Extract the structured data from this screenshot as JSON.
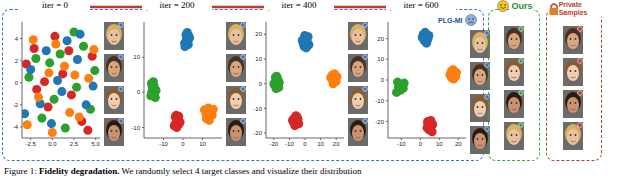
{
  "chart_data": [
    {
      "type": "scatter",
      "title": "iter = 0",
      "xlim": [
        -3.5,
        5.5
      ],
      "ylim": [
        -5,
        5.5
      ],
      "xticks": [
        -2.5,
        {
          "value": 0,
          "label": "0.0"
        },
        2.5,
        {
          "value": 5,
          "label": "5.0"
        }
      ],
      "yticks": [
        -4,
        -2,
        0,
        2,
        4
      ],
      "grid": false,
      "series": [
        {
          "color": "#d62728",
          "x": [
            -2.1,
            -0.5,
            1.2,
            3.4,
            4.6,
            -1.8,
            0.3,
            2.2,
            -3.0,
            1.9,
            4.1,
            -0.9
          ],
          "y": [
            3.1,
            -2.2,
            0.8,
            -3.5,
            2.4,
            -0.6,
            4.2,
            -1.1,
            1.7,
            2.9,
            -4.3,
            0.1
          ]
        },
        {
          "color": "#2ca02c",
          "x": [
            -1.2,
            0.9,
            2.8,
            4.9,
            -2.7,
            1.5,
            3.6,
            -0.3,
            0.2,
            2.5,
            -1.9,
            4.4
          ],
          "y": [
            -3.2,
            2.6,
            -0.4,
            1.1,
            0.5,
            -4.1,
            3.3,
            1.8,
            -1.5,
            4.6,
            2.2,
            -2.4
          ]
        },
        {
          "color": "#1f77b4",
          "x": [
            -2.5,
            -0.1,
            1.7,
            3.9,
            0.6,
            2.9,
            -1.4,
            4.7,
            -3.2,
            1.1,
            3.2,
            -0.7
          ],
          "y": [
            1.2,
            -3.7,
            3.8,
            -2.0,
            0.2,
            2.1,
            -1.9,
            -0.3,
            -2.8,
            -0.8,
            4.4,
            2.9
          ]
        },
        {
          "color": "#ff7f0e",
          "x": [
            -1.6,
            0.4,
            2.0,
            4.2,
            -2.9,
            3.1,
            -0.4,
            1.4,
            4.8,
            -2.2,
            2.6,
            0.0
          ],
          "y": [
            -1.3,
            3.5,
            -2.7,
            0.4,
            -3.8,
            -3.1,
            0.9,
            1.5,
            3.0,
            3.9,
            0.7,
            -4.5
          ]
        }
      ]
    },
    {
      "type": "scatter",
      "title": "iter = 200",
      "xlim": [
        -20,
        20
      ],
      "ylim": [
        -13,
        20
      ],
      "xticks": [
        -10,
        0,
        10
      ],
      "yticks": [
        -10,
        0,
        10
      ],
      "grid": false,
      "series": [
        {
          "color": "#1f77b4",
          "x": [
            1,
            2.5,
            3,
            1.8,
            2.2,
            0.8,
            3.4,
            2.7,
            1.5,
            2.0
          ],
          "y": [
            13,
            14.5,
            16,
            15.2,
            17,
            14,
            15.5,
            13.6,
            16.4,
            15
          ]
        },
        {
          "color": "#2ca02c",
          "x": [
            -16,
            -15,
            -14.5,
            -16.5,
            -15.2,
            -13.8,
            -14.7,
            -15.8,
            -16.2,
            -14.2
          ],
          "y": [
            0,
            2,
            1,
            -1,
            3,
            0.5,
            -0.5,
            1.5,
            2.5,
            -1.5
          ]
        },
        {
          "color": "#d62728",
          "x": [
            -4,
            -3,
            -2,
            -3.5,
            -2.5,
            -1.5,
            -4.5,
            -3.2,
            -2.2,
            -3.8
          ],
          "y": [
            -7,
            -8,
            -9,
            -6.5,
            -7.5,
            -8.5,
            -9.5,
            -10,
            -6.8,
            -8.8
          ]
        },
        {
          "color": "#ff7f0e",
          "x": [
            11,
            12.5,
            14,
            13,
            15,
            12,
            14.5,
            13.5,
            11.8,
            15.5
          ],
          "y": [
            -5,
            -6,
            -7,
            -4.5,
            -6.5,
            -7.5,
            -5.5,
            -8,
            -6.2,
            -4.8
          ]
        }
      ]
    },
    {
      "type": "scatter",
      "title": "iter = 400",
      "xlim": [
        -25,
        25
      ],
      "ylim": [
        -22,
        25
      ],
      "xticks": [
        -20,
        -10,
        0,
        10,
        20
      ],
      "yticks": [
        -20,
        -10,
        0,
        10,
        20
      ],
      "grid": false,
      "series": [
        {
          "color": "#1f77b4",
          "x": [
            -1,
            0,
            1.5,
            -0.5,
            2,
            0.8,
            -1.8,
            1.2,
            -0.2,
            2.5
          ],
          "y": [
            16,
            18,
            17,
            15,
            19,
            14.5,
            17.5,
            16.5,
            19.5,
            15.8
          ]
        },
        {
          "color": "#2ca02c",
          "x": [
            -20,
            -18,
            -17,
            -19,
            -16.5,
            -18.5,
            -19.5,
            -17.5,
            -18.2,
            -16.8
          ],
          "y": [
            0,
            1.5,
            -1,
            2.5,
            0.5,
            -2,
            -0.5,
            2,
            3,
            -1.5
          ]
        },
        {
          "color": "#ff7f0e",
          "x": [
            17,
            18.5,
            20,
            19,
            16.5,
            18,
            19.5,
            17.5,
            20.5,
            18.8
          ],
          "y": [
            2,
            3,
            1,
            4,
            2.5,
            0,
            1.5,
            3.5,
            2.8,
            0.8
          ]
        },
        {
          "color": "#d62728",
          "x": [
            -7,
            -5.5,
            -6,
            -4.5,
            -7.5,
            -5,
            -6.5,
            -8,
            -4,
            -5.8
          ],
          "y": [
            -14,
            -15,
            -16,
            -14.5,
            -15.5,
            -13.5,
            -17,
            -14.8,
            -16.2,
            -13
          ]
        }
      ]
    },
    {
      "type": "scatter",
      "title": "iter = 600",
      "xlim": [
        -17,
        24
      ],
      "ylim": [
        -28,
        28
      ],
      "xticks": [
        -10,
        0,
        10,
        20
      ],
      "yticks": [
        -20,
        -10,
        0,
        10,
        20
      ],
      "grid": false,
      "series": [
        {
          "color": "#1f77b4",
          "x": [
            2,
            3,
            4,
            1.5,
            3.5,
            2.5,
            4.5,
            1,
            3.2,
            2.8
          ],
          "y": [
            19,
            21,
            20,
            22,
            18.5,
            23,
            21.5,
            20.5,
            17.8,
            19.8
          ]
        },
        {
          "color": "#ff7f0e",
          "x": [
            16,
            17,
            18,
            16.5,
            19,
            17.5,
            15.5,
            18.5,
            17.2,
            16.2
          ],
          "y": [
            2,
            3,
            4,
            1,
            3.5,
            0.5,
            2.5,
            1.5,
            5,
            4.2
          ]
        },
        {
          "color": "#2ca02c",
          "x": [
            -11,
            -10,
            -9,
            -12,
            -10.5,
            -9.5,
            -11.5,
            -8.5,
            -10.2,
            -12.5
          ],
          "y": [
            -2,
            -3,
            -4,
            -1,
            -5,
            -2.5,
            -3.5,
            -1.5,
            -4.5,
            -6
          ]
        },
        {
          "color": "#d62728",
          "x": [
            4,
            5,
            6,
            3.5,
            5.5,
            4.5,
            6.5,
            5.2,
            3.8,
            6.2
          ],
          "y": [
            -20,
            -21,
            -22,
            -23,
            -19.5,
            -24,
            -21.5,
            -22.5,
            -20.5,
            -25
          ]
        }
      ]
    }
  ],
  "labels": {
    "baseline": "PLG-MI",
    "ours": "Ours",
    "private": "Private Samples"
  },
  "caption": {
    "label": "Figure 1:",
    "bold": "Fidelity degradation.",
    "text": "We randomly select 4 target classes and visualize their distribution"
  }
}
